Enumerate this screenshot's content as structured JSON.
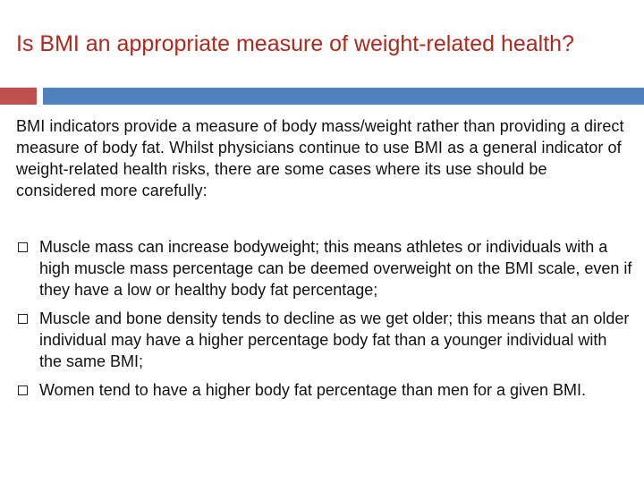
{
  "slide": {
    "title": "Is BMI an appropriate measure of weight-related health?",
    "intro": "BMI indicators provide a measure of body mass/weight rather than providing a direct measure of body fat. Whilst physicians continue to use BMI as a general indicator of weight-related health risks, there are some cases where its use should be considered more carefully:",
    "bullets": [
      {
        "text": "Muscle mass can increase bodyweight; this means athletes or individuals with a high muscle mass percentage can be deemed overweight on the BMI scale, even if they have a low or healthy body fat percentage;"
      },
      {
        "text": "Muscle and bone density tends to decline as we get older; this means that an older individual may have a higher percentage body fat than a younger individual with the same BMI;"
      },
      {
        "text": "Women tend to have a higher body fat percentage than men for a given BMI."
      }
    ]
  },
  "colors": {
    "title": "#b0281e",
    "accent_red": "#c0504d",
    "accent_blue": "#4f81bd",
    "text": "#111111"
  },
  "icons": {
    "bullet": "square-bullet-icon"
  }
}
